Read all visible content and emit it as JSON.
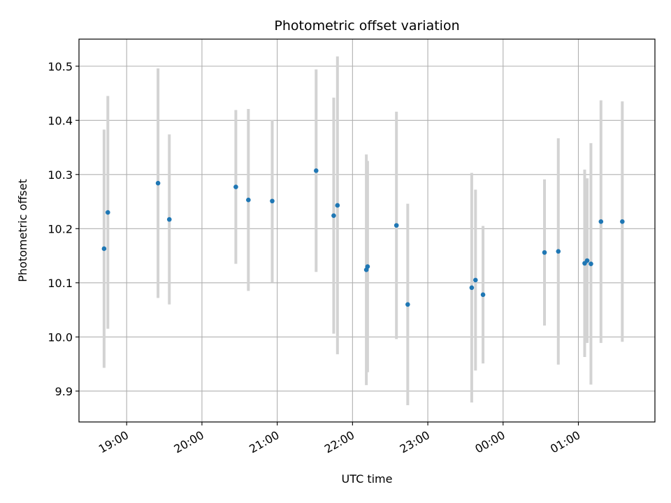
{
  "chart_data": {
    "type": "scatter",
    "title": "Photometric offset variation",
    "xlabel": "UTC time",
    "ylabel": "Photometric offset",
    "x_axis_type": "time",
    "xlim": [
      "18:22",
      "02:01"
    ],
    "ylim": [
      9.843,
      10.55
    ],
    "x_ticks": [
      "19:00",
      "20:00",
      "21:00",
      "22:00",
      "23:00",
      "00:00",
      "01:00"
    ],
    "y_ticks": [
      "9.9",
      "10.0",
      "10.1",
      "10.2",
      "10.3",
      "10.4",
      "10.5"
    ],
    "grid": true,
    "legend": "none",
    "point_color": "#1f77b4",
    "errorbar_color": "#d3d3d3",
    "points": [
      {
        "x": "18:42",
        "y": 10.163,
        "err": 0.22
      },
      {
        "x": "18:45",
        "y": 10.23,
        "err": 0.215
      },
      {
        "x": "19:25",
        "y": 10.284,
        "err": 0.212
      },
      {
        "x": "19:34",
        "y": 10.217,
        "err": 0.157
      },
      {
        "x": "20:27",
        "y": 10.277,
        "err": 0.142
      },
      {
        "x": "20:37",
        "y": 10.253,
        "err": 0.168
      },
      {
        "x": "20:56",
        "y": 10.251,
        "err": 0.15
      },
      {
        "x": "21:31",
        "y": 10.307,
        "err": 0.187
      },
      {
        "x": "21:45",
        "y": 10.224,
        "err": 0.218
      },
      {
        "x": "21:48",
        "y": 10.243,
        "err": 0.275
      },
      {
        "x": "22:11",
        "y": 10.124,
        "err": 0.213
      },
      {
        "x": "22:12",
        "y": 10.13,
        "err": 0.195
      },
      {
        "x": "22:35",
        "y": 10.206,
        "err": 0.21
      },
      {
        "x": "22:44",
        "y": 10.06,
        "err": 0.186
      },
      {
        "x": "23:35",
        "y": 10.091,
        "err": 0.212
      },
      {
        "x": "23:38",
        "y": 10.105,
        "err": 0.167
      },
      {
        "x": "23:44",
        "y": 10.078,
        "err": 0.127
      },
      {
        "x": "00:33",
        "y": 10.156,
        "err": 0.135
      },
      {
        "x": "00:44",
        "y": 10.158,
        "err": 0.209
      },
      {
        "x": "01:05",
        "y": 10.136,
        "err": 0.173
      },
      {
        "x": "01:07",
        "y": 10.141,
        "err": 0.152
      },
      {
        "x": "01:10",
        "y": 10.135,
        "err": 0.223
      },
      {
        "x": "01:18",
        "y": 10.213,
        "err": 0.224
      },
      {
        "x": "01:35",
        "y": 10.213,
        "err": 0.222
      }
    ]
  }
}
